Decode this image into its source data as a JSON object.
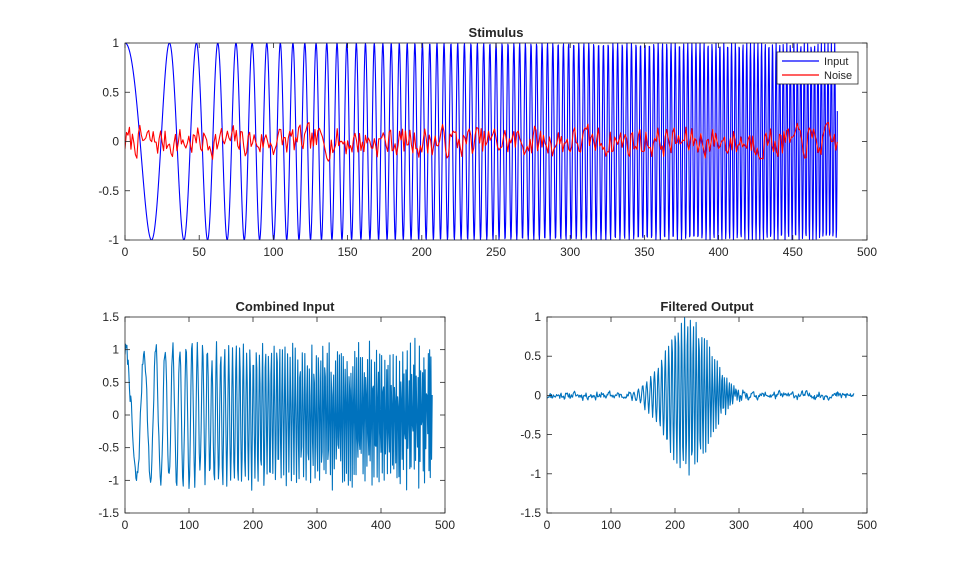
{
  "colors": {
    "input": "#0000ff",
    "noise": "#ff0000",
    "combined": "#0072bd",
    "axis": "#262626",
    "background": "#ffffff"
  },
  "chart_data": [
    {
      "id": "stimulus",
      "type": "line",
      "title": "Stimulus",
      "xlabel": "",
      "ylabel": "",
      "xlim": [
        0,
        500
      ],
      "ylim": [
        -1,
        1
      ],
      "xticks": [
        0,
        50,
        100,
        150,
        200,
        250,
        300,
        350,
        400,
        450,
        500
      ],
      "yticks": [
        -1,
        -0.5,
        0,
        0.5,
        1
      ],
      "xtick_labels": [
        "0",
        "50",
        "100",
        "150",
        "200",
        "250",
        "300",
        "350",
        "400",
        "450",
        "500"
      ],
      "ytick_labels": [
        "-1",
        "-0.5",
        "0",
        "0.5",
        "1"
      ],
      "grid": false,
      "legend": {
        "placement": "top-right",
        "entries": [
          "Input",
          "Noise"
        ]
      },
      "series": [
        {
          "name": "Input",
          "color": "#0000ff",
          "generator": {
            "kind": "chirp",
            "x_start": 0,
            "x_end": 480,
            "step": 0.25,
            "amplitude": 1,
            "freq_start": 0.02,
            "freq_end": 0.45
          }
        },
        {
          "name": "Noise",
          "color": "#ff0000",
          "generator": {
            "kind": "noise",
            "x_start": 0,
            "x_end": 480,
            "step": 1,
            "amplitude": 0.22,
            "seed": 7
          }
        }
      ]
    },
    {
      "id": "combined",
      "type": "line",
      "title": "Combined Input",
      "xlabel": "",
      "ylabel": "",
      "xlim": [
        0,
        500
      ],
      "ylim": [
        -1.5,
        1.5
      ],
      "xticks": [
        0,
        100,
        200,
        300,
        400,
        500
      ],
      "yticks": [
        -1.5,
        -1,
        -0.5,
        0,
        0.5,
        1,
        1.5
      ],
      "xtick_labels": [
        "0",
        "100",
        "200",
        "300",
        "400",
        "500"
      ],
      "ytick_labels": [
        "-1.5",
        "-1",
        "-0.5",
        "0",
        "0.5",
        "1",
        "1.5"
      ],
      "grid": false,
      "series": [
        {
          "color": "#0072bd",
          "generator": {
            "kind": "chirp_plus_noise",
            "x_start": 0,
            "x_end": 480,
            "step": 1,
            "amplitude": 1,
            "freq_start": 0.02,
            "freq_end": 0.45,
            "noise_amplitude": 0.22,
            "seed": 7
          }
        }
      ]
    },
    {
      "id": "filtered",
      "type": "line",
      "title": "Filtered Output",
      "xlabel": "",
      "ylabel": "",
      "xlim": [
        0,
        500
      ],
      "ylim": [
        -1.5,
        1
      ],
      "xticks": [
        0,
        100,
        200,
        300,
        400,
        500
      ],
      "yticks": [
        -1.5,
        -1,
        -0.5,
        0,
        0.5,
        1
      ],
      "xtick_labels": [
        "0",
        "100",
        "200",
        "300",
        "400",
        "500"
      ],
      "ytick_labels": [
        "-1.5",
        "-1",
        "-0.5",
        "0",
        "0.5",
        "1"
      ],
      "grid": false,
      "series": [
        {
          "color": "#0072bd",
          "generator": {
            "kind": "bandpass_burst",
            "x_start": 0,
            "x_end": 480,
            "step": 1,
            "peak_x": 220,
            "peak_width": 48,
            "peak_amplitude": 1.0,
            "baseline_amplitude": 0.09,
            "freq_start": 0.02,
            "freq_end": 0.45,
            "seed": 11
          }
        }
      ]
    }
  ]
}
